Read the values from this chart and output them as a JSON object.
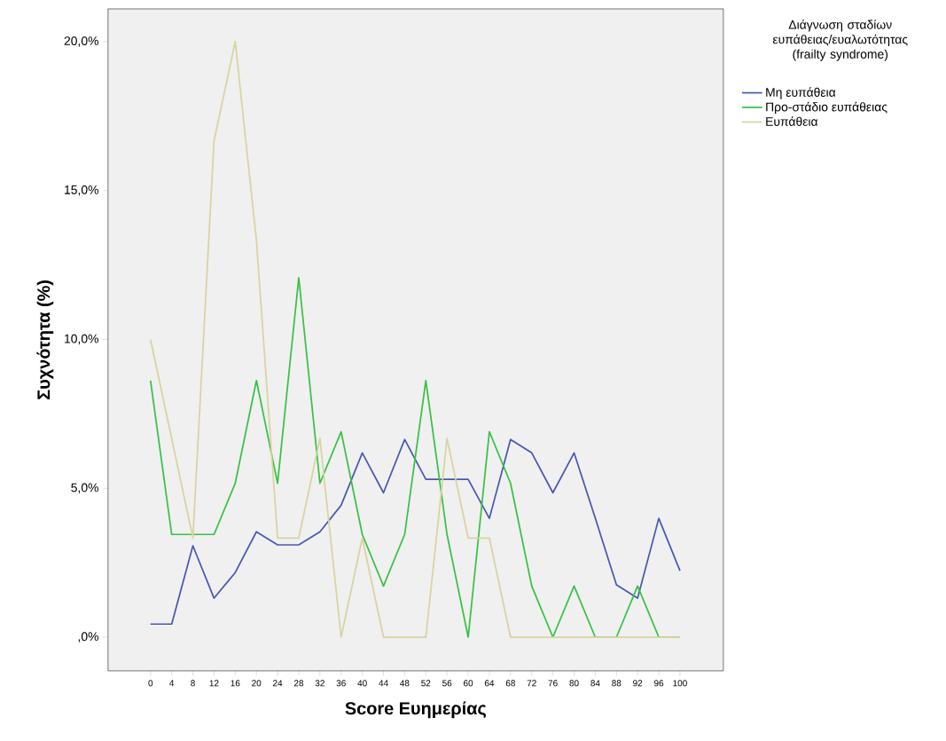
{
  "chart_data": {
    "type": "line",
    "xlabel": "Score Ευημερίας",
    "ylabel": "Συχνότητα (%)",
    "legend_title": "Διάγνωση σταδίων ευπάθειας/ευαλωτότητας (frailty syndrome)",
    "categories": [
      "0",
      "4",
      "8",
      "12",
      "16",
      "20",
      "24",
      "28",
      "32",
      "36",
      "40",
      "44",
      "48",
      "52",
      "56",
      "60",
      "64",
      "68",
      "72",
      "76",
      "80",
      "84",
      "88",
      "92",
      "96",
      "100"
    ],
    "series": [
      {
        "name": "Μη ευπάθεια",
        "color": "#4858b0",
        "values": [
          0.44,
          0.44,
          3.07,
          1.31,
          2.17,
          3.54,
          3.1,
          3.1,
          3.54,
          4.43,
          6.19,
          4.85,
          6.64,
          5.3,
          5.3,
          5.3,
          3.99,
          6.64,
          6.19,
          4.85,
          6.19,
          4.0,
          1.76,
          1.31,
          3.99,
          2.23
        ]
      },
      {
        "name": "Προ-στάδιο ευπάθειας",
        "color": "#36c144",
        "values": [
          8.62,
          3.45,
          3.45,
          3.45,
          5.17,
          8.62,
          5.17,
          12.07,
          5.17,
          6.9,
          3.45,
          1.72,
          3.45,
          8.62,
          3.45,
          0,
          6.9,
          5.17,
          1.72,
          0,
          1.72,
          0,
          0,
          1.72,
          0,
          0
        ]
      },
      {
        "name": "Ευπάθεια",
        "color": "#d8d3a0",
        "values": [
          10,
          6.67,
          3.33,
          16.67,
          20,
          13.33,
          3.33,
          3.33,
          6.67,
          0,
          3.33,
          0,
          0,
          0,
          6.67,
          3.33,
          3.33,
          0,
          0,
          0,
          0,
          0,
          0,
          0,
          0,
          0
        ]
      }
    ],
    "ylim": [
      -1.13,
      21.1
    ],
    "yticks": [
      {
        "value": 0,
        "label": ",0%"
      },
      {
        "value": 5,
        "label": "5,0%"
      },
      {
        "value": 10,
        "label": "10,0%"
      },
      {
        "value": 15,
        "label": "15,0%"
      },
      {
        "value": 20,
        "label": "20,0%"
      }
    ],
    "legend": "top right",
    "grid": false,
    "marker": "none",
    "line_style": "solid"
  }
}
